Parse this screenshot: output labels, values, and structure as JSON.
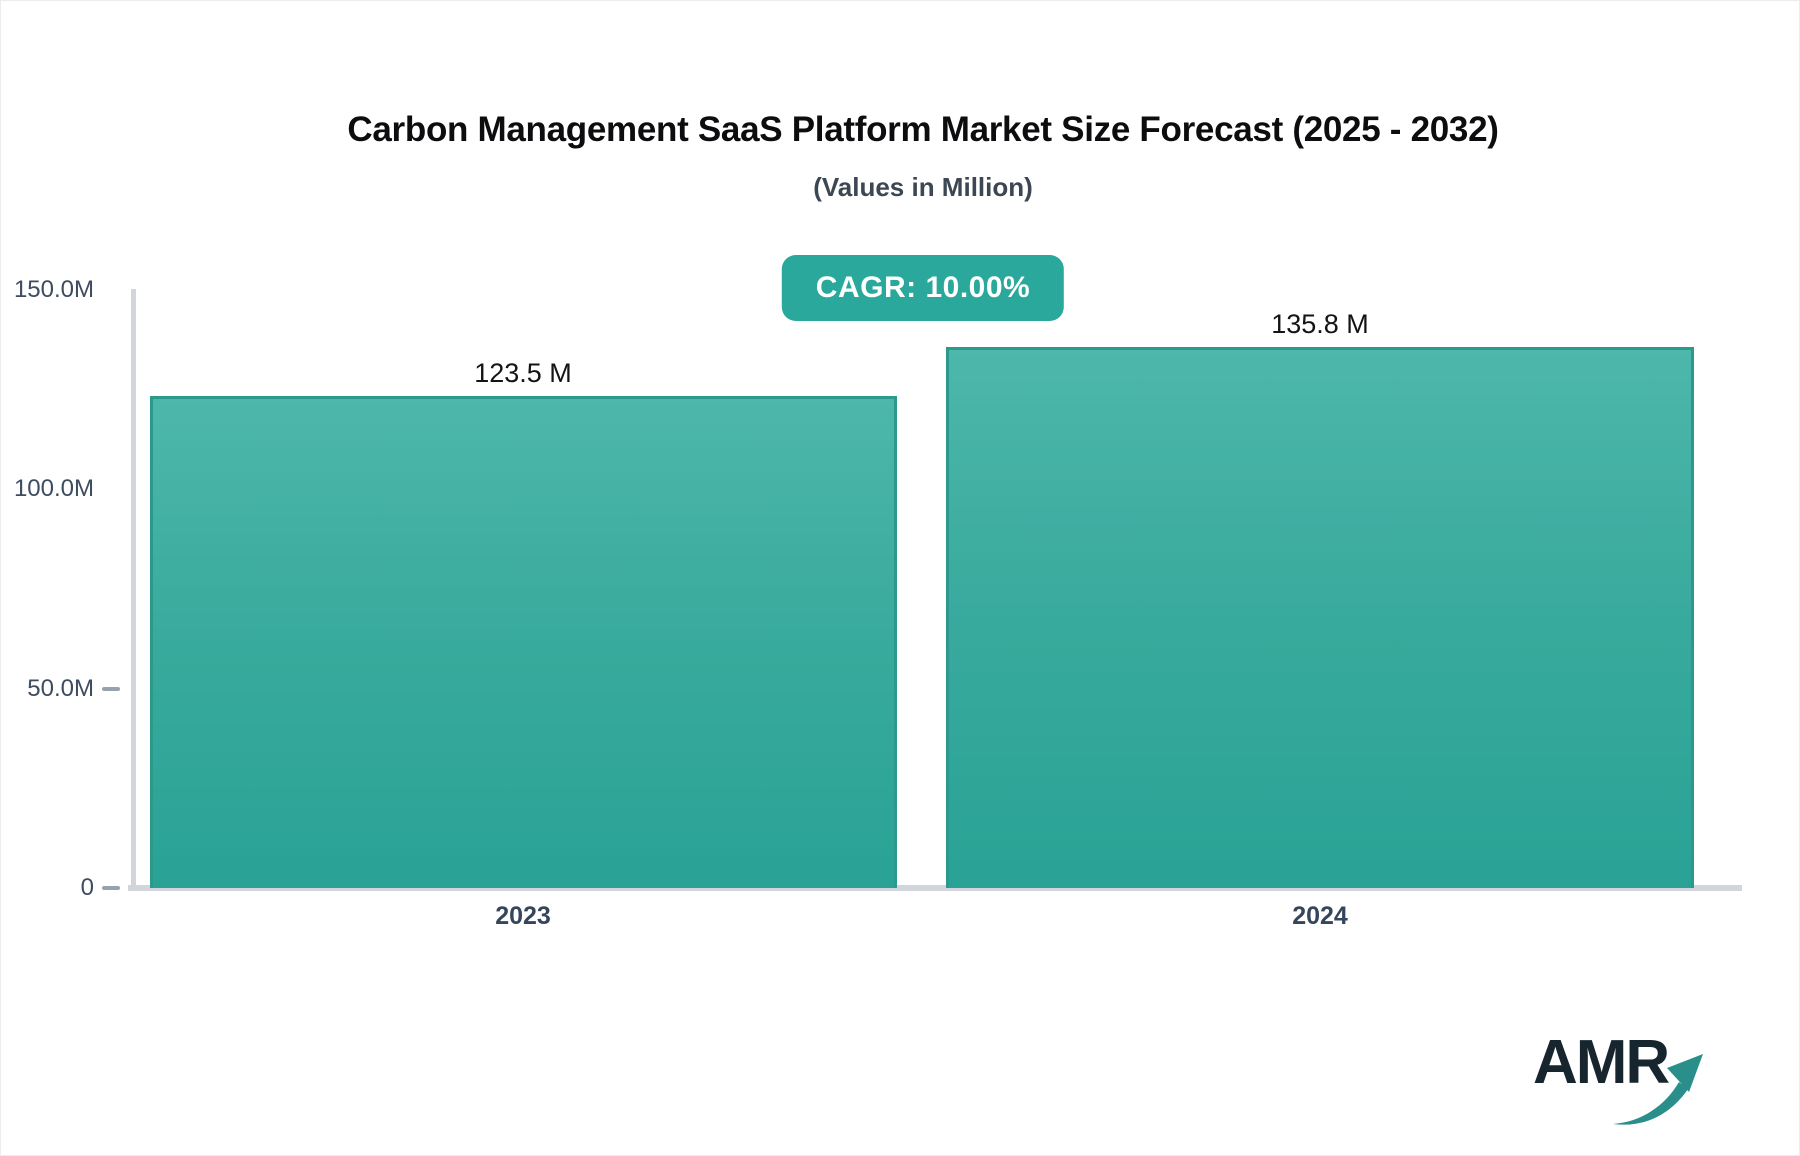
{
  "chart_data": {
    "type": "bar",
    "title": "Carbon Management SaaS Platform Market Size Forecast (2025 - 2032)",
    "subtitle": "(Values in Million)",
    "badge_label": "CAGR: 10.00%",
    "categories": [
      "2023",
      "2024"
    ],
    "values": [
      123.5,
      135.8
    ],
    "value_labels": [
      "123.5 M",
      "135.8 M"
    ],
    "unit": "Million",
    "ylim": [
      0,
      150
    ],
    "yticks": [
      {
        "label": "150.0M",
        "value": 150,
        "dash": false
      },
      {
        "label": "100.0M",
        "value": 100,
        "dash": false
      },
      {
        "label": "50.0M",
        "value": 50,
        "dash": true
      },
      {
        "label": "0",
        "value": 0,
        "dash": true
      }
    ],
    "grid": false,
    "legend": "none",
    "colors": {
      "bar_gradient_top": "#4db7ab",
      "bar_gradient_bottom": "#29a295",
      "bar_edge": "#2b9a8d",
      "badge_background": "#2aa89c",
      "badge_text": "#ffffff",
      "axis_line": "#d2d6dc",
      "tick_text": "#3d4c5f",
      "category_text": "#35465c",
      "value_text": "#141414",
      "title_text": "#0d0d0f",
      "subtitle_text": "#3d4754"
    }
  },
  "branding": {
    "logo_text": "AMR",
    "logo_text_color": "#17262e",
    "logo_arrow_color": "#2a8f8b"
  }
}
